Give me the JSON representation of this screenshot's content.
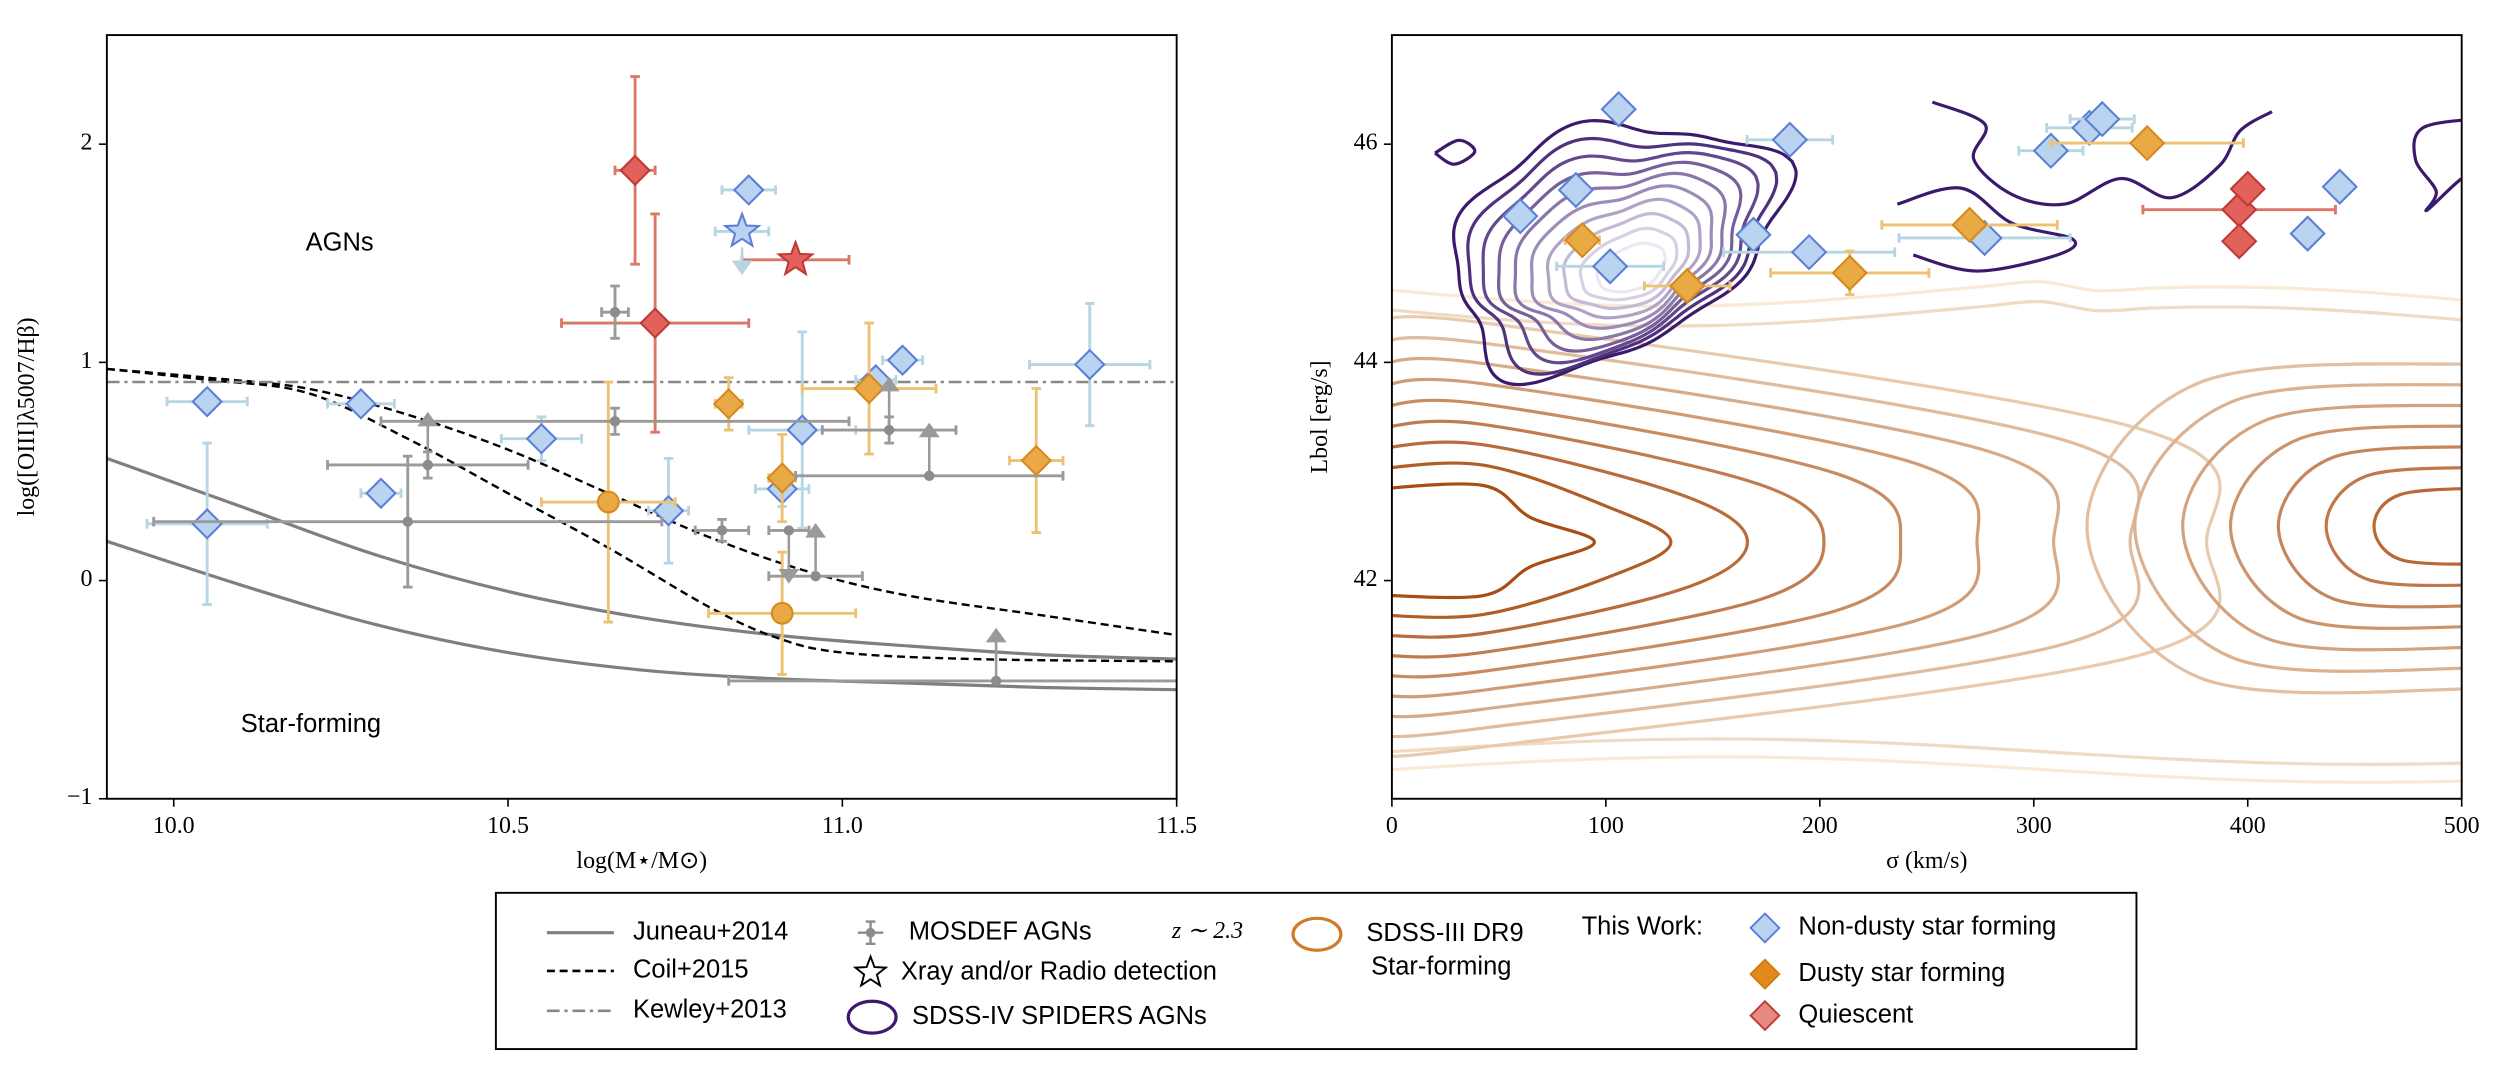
{
  "chart_data": [
    {
      "type": "scatter",
      "xlabel": "log(M⋆/M⊙)",
      "ylabel": "log([OIII]λ5007/Hβ)",
      "xlim": [
        9.9,
        11.5
      ],
      "ylim": [
        -1,
        2.5
      ],
      "xticks": [
        {
          "value": 10,
          "label": "10.0"
        },
        10.5,
        {
          "value": 11,
          "label": "11.0"
        },
        11.5
      ],
      "yticks": [
        {
          "value": -1,
          "label": "−1"
        },
        0,
        1,
        2
      ],
      "annotations": [
        "AGNs",
        "Star-forming"
      ],
      "lines": [
        {
          "style": "solid",
          "color": "#7f7f7f",
          "x": [
            9.9,
            10.1,
            10.3,
            10.5,
            10.7,
            10.9,
            11.1,
            11.3,
            11.5
          ],
          "y": [
            0.56,
            0.34,
            0.12,
            -0.05,
            -0.17,
            -0.25,
            -0.3,
            -0.34,
            -0.36
          ]
        },
        {
          "style": "solid",
          "color": "#7f7f7f",
          "x": [
            9.9,
            10.1,
            10.3,
            10.5,
            10.7,
            10.9,
            11.1,
            11.3,
            11.5
          ],
          "y": [
            0.18,
            -0.02,
            -0.2,
            -0.33,
            -0.41,
            -0.45,
            -0.47,
            -0.49,
            -0.5
          ]
        },
        {
          "style": "dashed",
          "color": "#000000",
          "x": [
            9.9,
            10.05,
            10.2,
            10.35,
            10.5,
            10.65,
            10.8,
            10.95,
            11.1,
            11.3,
            11.5
          ],
          "y": [
            0.97,
            0.93,
            0.88,
            0.76,
            0.6,
            0.4,
            0.2,
            0.04,
            -0.07,
            -0.16,
            -0.25
          ]
        },
        {
          "style": "dashed",
          "color": "#000000",
          "x": [
            9.9,
            10.05,
            10.2,
            10.35,
            10.5,
            10.65,
            10.8,
            10.9,
            11.0,
            11.2,
            11.5
          ],
          "y": [
            0.97,
            0.92,
            0.86,
            0.65,
            0.4,
            0.15,
            -0.12,
            -0.26,
            -0.33,
            -0.36,
            -0.37
          ]
        },
        {
          "style": "dashdot",
          "color": "#888888",
          "x": [
            9.9,
            11.5
          ],
          "y": [
            0.91,
            0.91
          ]
        }
      ],
      "series": [
        {
          "marker": "diamond",
          "color": "#b9d3f0",
          "edgecolor": "#5b7fd4",
          "ecolor": "#b7d6e4",
          "x": [
            10.05,
            10.05,
            10.28,
            10.31,
            10.55,
            10.74,
            10.86,
            10.91,
            10.94,
            11.05,
            11.09,
            11.37
          ],
          "values": [
            0.82,
            0.26,
            0.81,
            0.4,
            0.65,
            0.32,
            1.79,
            0.42,
            0.69,
            0.92,
            1.01,
            0.99
          ],
          "xerr": [
            0.06,
            0.09,
            0.05,
            0.03,
            0.06,
            0.03,
            0.04,
            0.04,
            0.08,
            0.03,
            0.03,
            0.09
          ],
          "yerr": [
            0.04,
            0.37,
            0.03,
            0.04,
            0.1,
            0.24,
            0.04,
            0.08,
            0.45,
            0.04,
            0.05,
            0.28
          ]
        },
        {
          "marker": "diamond",
          "color": "#e9a945",
          "edgecolor": "#d68a1e",
          "ecolor": "#eec274",
          "x": [
            10.83,
            10.91,
            11.04,
            11.29
          ],
          "values": [
            0.81,
            0.47,
            0.88,
            0.55
          ],
          "xerr": [
            0.02,
            0.02,
            0.1,
            0.04
          ],
          "yerr": [
            0.12,
            0.2,
            0.3,
            0.33
          ]
        },
        {
          "marker": "circle",
          "color": "#e9a945",
          "edgecolor": "#d68a1e",
          "ecolor": "#eec274",
          "x": [
            10.65,
            10.91
          ],
          "values": [
            0.36,
            -0.15
          ],
          "xerr": [
            0.1,
            0.11
          ],
          "yerr": [
            0.55,
            0.28
          ]
        },
        {
          "marker": "diamond",
          "color": "#e2625b",
          "edgecolor": "#c03a35",
          "ecolor": "#da7766",
          "x": [
            10.69,
            10.72
          ],
          "values": [
            1.88,
            1.18
          ],
          "xerr": [
            0.03,
            0.14
          ],
          "yerr": [
            0.43,
            0.5
          ]
        },
        {
          "marker": "star",
          "color": "#e2625b",
          "edgecolor": "#c03a35",
          "ecolor": "#da7766",
          "x": [
            10.93
          ],
          "values": [
            1.47
          ],
          "xerr": [
            0.08
          ]
        },
        {
          "marker": "star",
          "color": "#b9d3f0",
          "edgecolor": "#5b7fd4",
          "ecolor": "#b7d6e4",
          "x": [
            10.85
          ],
          "values": [
            1.6
          ],
          "xerr": [
            0.04
          ],
          "limit": [
            "down"
          ]
        },
        {
          "marker": "point",
          "color": "#8c8c8c",
          "edgecolor": "#8c8c8c",
          "ecolor": "#9a9a9a",
          "x": [
            10.66,
            10.66,
            10.38,
            10.35,
            10.82,
            10.92,
            10.96,
            11.07,
            11.13,
            11.23
          ],
          "values": [
            1.23,
            0.73,
            0.53,
            0.27,
            0.23,
            0.23,
            0.02,
            0.69,
            0.48,
            -0.46
          ],
          "xerr": [
            0.02,
            0.35,
            0.15,
            0.38,
            0.04,
            0.03,
            0.07,
            0.1,
            0.2,
            0.4
          ],
          "yerr": [
            0.12,
            0.06,
            0.06,
            0.3,
            0.05,
            null,
            null,
            0.06,
            null,
            null
          ],
          "limit": [
            null,
            null,
            "up",
            null,
            null,
            "down",
            "up",
            "up",
            "up",
            "up"
          ]
        }
      ]
    },
    {
      "type": "scatter",
      "xlabel": "σ (km/s)",
      "ylabel": "Lbol [erg/s]",
      "xlim": [
        0,
        500
      ],
      "ylim": [
        40,
        47
      ],
      "xticks": [
        0,
        100,
        200,
        300,
        400,
        500
      ],
      "yticks": [
        42,
        44,
        46
      ],
      "contours": [
        {
          "color": "#3b1a6e",
          "fade": "#ece8f3"
        },
        {
          "color": "#a84d14",
          "fade": "#f8ead6"
        }
      ],
      "series": [
        {
          "marker": "diamond",
          "color": "#b9d3f0",
          "edgecolor": "#5b7fd4",
          "ecolor": "#b7d6e4",
          "x": [
            106,
            60,
            86,
            102,
            186,
            169,
            195,
            308,
            326,
            332,
            277,
            428,
            443
          ],
          "values": [
            46.32,
            45.34,
            45.58,
            44.88,
            46.04,
            45.17,
            45.01,
            45.94,
            46.15,
            46.23,
            45.14,
            45.18,
            45.61
          ],
          "xerr": [
            null,
            null,
            null,
            25,
            20,
            null,
            40,
            15,
            20,
            15,
            40,
            null,
            null
          ]
        },
        {
          "marker": "diamond",
          "color": "#e9a945",
          "edgecolor": "#d68a1e",
          "ecolor": "#eec274",
          "x": [
            89,
            138,
            214,
            270,
            353
          ],
          "values": [
            45.12,
            44.7,
            44.82,
            45.26,
            46.01
          ],
          "xerr": [
            8,
            20,
            37,
            41,
            45
          ],
          "yerr": [
            0.1,
            0.08,
            0.2,
            0.12,
            0.05
          ]
        },
        {
          "marker": "diamond",
          "color": "#e2625b",
          "edgecolor": "#c03a35",
          "ecolor": "#da7766",
          "x": [
            396,
            400,
            396
          ],
          "values": [
            45.4,
            45.59,
            45.11
          ],
          "xerr": [
            45,
            null,
            null
          ],
          "yerr": [
            null,
            null,
            0.1
          ]
        }
      ]
    }
  ],
  "legend": {
    "heading": "This Work:",
    "items": [
      {
        "label": "Juneau+2014",
        "marker": "solid",
        "color": "#7f7f7f"
      },
      {
        "label": "Coil+2015",
        "marker": "dashed",
        "color": "#000000"
      },
      {
        "label": "Kewley+2013",
        "marker": "dashdot",
        "color": "#888888"
      },
      {
        "label": "MOSDEF AGNs",
        "note": "z ∼ 2.3",
        "marker": "errorbar",
        "color": "#8c8c8c"
      },
      {
        "label": "Xray and/or Radio detection",
        "marker": "star",
        "color": "#000000"
      },
      {
        "label": "SDSS-IV SPIDERS AGNs",
        "marker": "ellipse",
        "color": "#3b1a6e"
      },
      {
        "label": "SDSS-III DR9",
        "label_line2": "Star-forming",
        "marker": "ellipse",
        "color": "#d07a2a"
      },
      {
        "label": "Non-dusty star forming",
        "marker": "diamond",
        "color": "#b9d3f0",
        "edgecolor": "#5b7fd4"
      },
      {
        "label": "Dusty star forming",
        "marker": "diamond",
        "color": "#e08a1e",
        "edgecolor": "#d07a10"
      },
      {
        "label": "Quiescent",
        "marker": "diamond",
        "color": "#e88a80",
        "edgecolor": "#c03a35"
      }
    ]
  }
}
